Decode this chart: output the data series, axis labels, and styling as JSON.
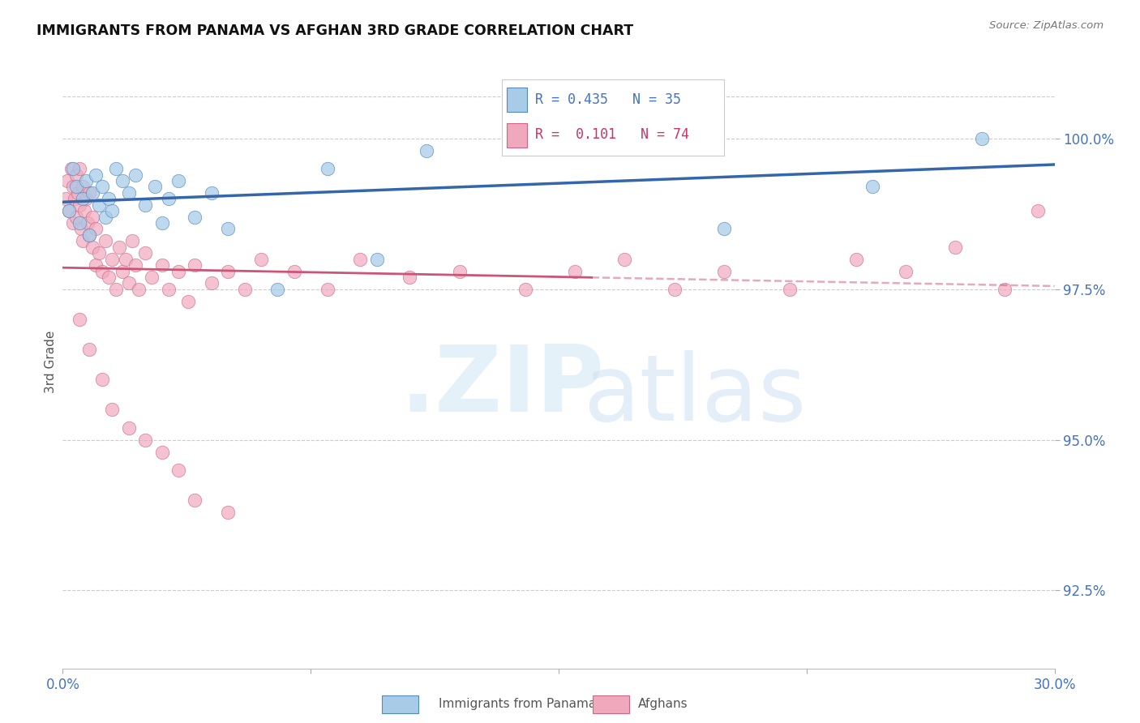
{
  "title": "IMMIGRANTS FROM PANAMA VS AFGHAN 3RD GRADE CORRELATION CHART",
  "source_text": "Source: ZipAtlas.com",
  "ylabel": "3rd Grade",
  "xlim": [
    0.0,
    30.0
  ],
  "ylim": [
    91.2,
    101.4
  ],
  "x_ticks": [
    0.0,
    7.5,
    15.0,
    22.5,
    30.0
  ],
  "x_tick_labels": [
    "0.0%",
    "",
    "",
    "",
    "30.0%"
  ],
  "y_ticks": [
    92.5,
    95.0,
    97.5,
    100.0
  ],
  "y_tick_labels": [
    "92.5%",
    "95.0%",
    "97.5%",
    "100.0%"
  ],
  "legend_r_blue": "0.435",
  "legend_n_blue": "35",
  "legend_r_pink": "0.101",
  "legend_n_pink": "74",
  "legend_label_blue": "Immigrants from Panama",
  "legend_label_pink": "Afghans",
  "blue_face_color": "#A8CBE8",
  "blue_edge_color": "#5588BB",
  "pink_face_color": "#F0A8BC",
  "pink_edge_color": "#CC6688",
  "line_blue_color": "#3366AA",
  "line_pink_color": "#CC5577",
  "grid_color": "#CCCCCC",
  "title_color": "#111111",
  "source_color": "#777777",
  "tick_label_color": "#4472C4",
  "watermark_zip_color": "#D5E8F5",
  "watermark_atlas_color": "#C8DFF2",
  "blue_x": [
    0.2,
    0.3,
    0.4,
    0.5,
    0.6,
    0.7,
    0.8,
    0.9,
    1.0,
    1.1,
    1.2,
    1.3,
    1.4,
    1.5,
    1.6,
    1.8,
    2.0,
    2.2,
    2.5,
    2.8,
    3.0,
    3.2,
    3.5,
    4.0,
    4.5,
    5.0,
    6.5,
    8.0,
    9.5,
    11.0,
    14.5,
    16.5,
    20.0,
    24.5,
    27.8
  ],
  "blue_y": [
    98.8,
    99.5,
    99.2,
    98.6,
    99.0,
    99.3,
    98.4,
    99.1,
    99.4,
    98.9,
    99.2,
    98.7,
    99.0,
    98.8,
    99.5,
    99.3,
    99.1,
    99.4,
    98.9,
    99.2,
    98.6,
    99.0,
    99.3,
    98.7,
    99.1,
    98.5,
    97.5,
    99.5,
    98.0,
    99.8,
    100.0,
    100.0,
    98.5,
    99.2,
    100.0
  ],
  "pink_x": [
    0.1,
    0.15,
    0.2,
    0.25,
    0.3,
    0.3,
    0.35,
    0.4,
    0.4,
    0.45,
    0.5,
    0.5,
    0.55,
    0.6,
    0.6,
    0.65,
    0.7,
    0.75,
    0.8,
    0.8,
    0.9,
    0.9,
    1.0,
    1.0,
    1.1,
    1.2,
    1.3,
    1.4,
    1.5,
    1.6,
    1.7,
    1.8,
    1.9,
    2.0,
    2.1,
    2.2,
    2.3,
    2.5,
    2.7,
    3.0,
    3.2,
    3.5,
    3.8,
    4.0,
    4.5,
    5.0,
    5.5,
    6.0,
    7.0,
    8.0,
    9.0,
    10.5,
    12.0,
    14.0,
    15.5,
    17.0,
    18.5,
    20.0,
    22.0,
    24.0,
    25.5,
    27.0,
    28.5,
    29.5,
    0.5,
    0.8,
    1.2,
    1.5,
    2.0,
    2.5,
    3.0,
    3.5,
    4.0,
    5.0
  ],
  "pink_y": [
    99.0,
    99.3,
    98.8,
    99.5,
    99.2,
    98.6,
    99.0,
    99.4,
    98.7,
    99.1,
    98.9,
    99.5,
    98.5,
    99.2,
    98.3,
    98.8,
    99.0,
    98.6,
    98.4,
    99.1,
    98.2,
    98.7,
    97.9,
    98.5,
    98.1,
    97.8,
    98.3,
    97.7,
    98.0,
    97.5,
    98.2,
    97.8,
    98.0,
    97.6,
    98.3,
    97.9,
    97.5,
    98.1,
    97.7,
    97.9,
    97.5,
    97.8,
    97.3,
    97.9,
    97.6,
    97.8,
    97.5,
    98.0,
    97.8,
    97.5,
    98.0,
    97.7,
    97.8,
    97.5,
    97.8,
    98.0,
    97.5,
    97.8,
    97.5,
    98.0,
    97.8,
    98.2,
    97.5,
    98.8,
    97.0,
    96.5,
    96.0,
    95.5,
    95.2,
    95.0,
    94.8,
    94.5,
    94.0,
    93.8
  ]
}
